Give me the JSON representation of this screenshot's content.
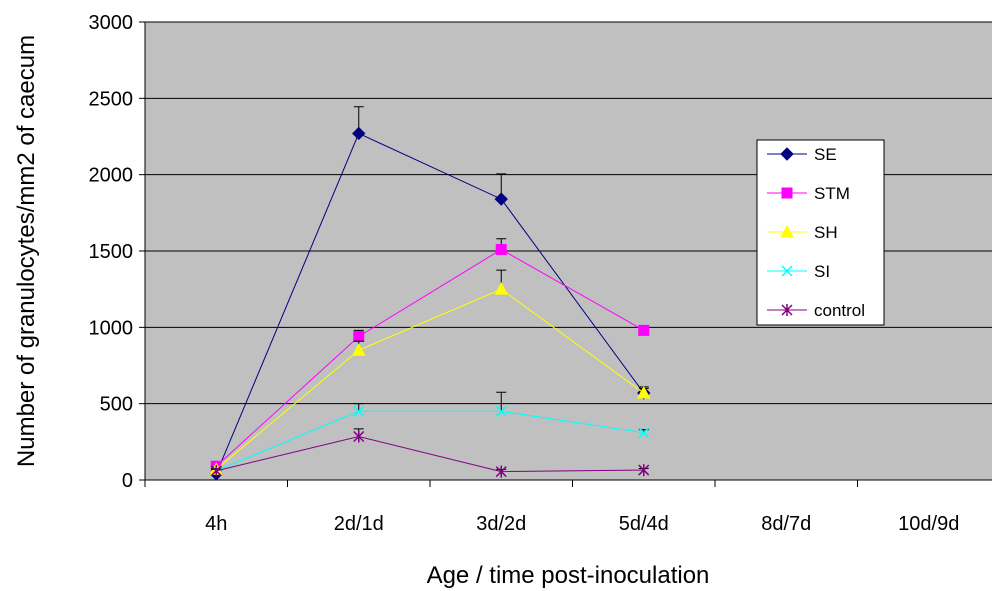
{
  "chart_data": {
    "type": "line",
    "title": "",
    "xlabel": "Age / time post-inoculation",
    "ylabel": "Number of granulocytes/mm2 of caecum",
    "categories": [
      "4h",
      "2d/1d",
      "3d/2d",
      "5d/4d",
      "8d/7d",
      "10d/9d"
    ],
    "ylim": [
      0,
      3000
    ],
    "yticks": [
      0,
      500,
      1000,
      1500,
      2000,
      2500,
      3000
    ],
    "grid": true,
    "legend_position": "right",
    "plot_background": "#c0c0c0",
    "series": [
      {
        "name": "SE",
        "color": "#000080",
        "marker": "diamond",
        "values": [
          40,
          2270,
          1840,
          570,
          null,
          null
        ],
        "errors": [
          20,
          175,
          165,
          40,
          null,
          null
        ]
      },
      {
        "name": "STM",
        "color": "#ff00ff",
        "marker": "square",
        "values": [
          90,
          940,
          1510,
          980,
          null,
          null
        ],
        "errors": [
          15,
          40,
          70,
          30,
          null,
          null
        ]
      },
      {
        "name": "SH",
        "color": "#ffff00",
        "marker": "triangle",
        "values": [
          70,
          850,
          1250,
          570,
          null,
          null
        ],
        "errors": [
          15,
          60,
          125,
          30,
          null,
          null
        ]
      },
      {
        "name": "SI",
        "color": "#00ffff",
        "marker": "x",
        "values": [
          60,
          450,
          450,
          310,
          null,
          null
        ],
        "errors": [
          15,
          50,
          125,
          20,
          null,
          null
        ]
      },
      {
        "name": "control",
        "color": "#800080",
        "marker": "star",
        "values": [
          60,
          285,
          55,
          65,
          null,
          null
        ],
        "errors": [
          10,
          50,
          15,
          10,
          null,
          null
        ]
      }
    ]
  }
}
